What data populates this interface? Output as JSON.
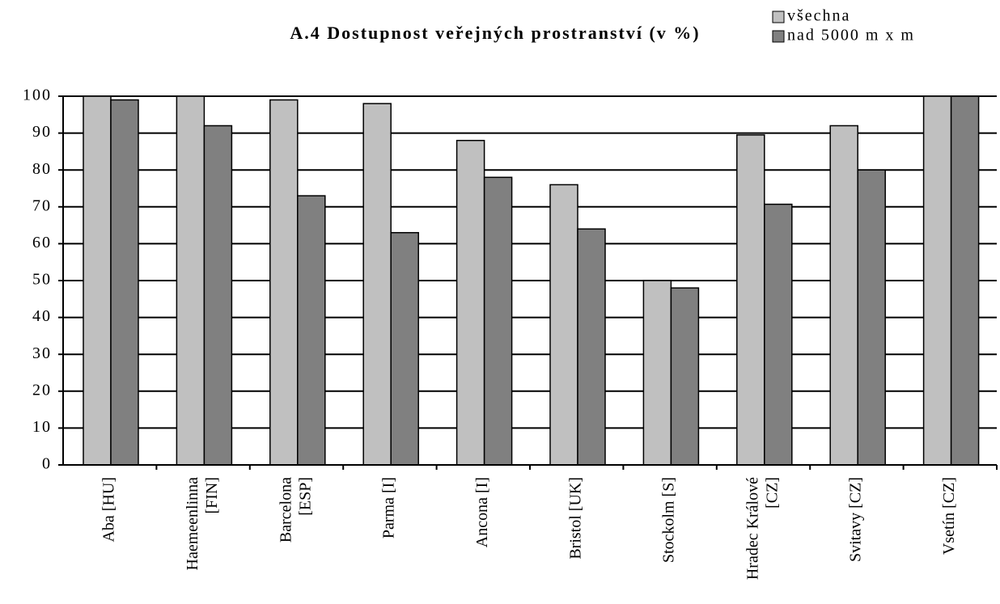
{
  "chart_data": {
    "type": "bar",
    "title": "A.4 Dostupnost veřejných prostranství (v %)",
    "categories": [
      "Aba [HU]",
      "Haemeenlinna [FIN]",
      "Barcelona [ESP]",
      "Parma [I]",
      "Ancona [I]",
      "Bristol [UK]",
      "Stockolm [S]",
      "Hradec Králové [CZ]",
      "Svitavy [CZ]",
      "Vsetín [CZ]"
    ],
    "series": [
      {
        "name": "všechna",
        "color": "#c0c0c0",
        "values": [
          100,
          100,
          99,
          98,
          88,
          76,
          50,
          89.5,
          92,
          100
        ]
      },
      {
        "name": "nad 5000 m x m",
        "color": "#808080",
        "values": [
          99,
          92,
          73,
          63,
          78,
          64,
          48,
          70.7,
          80,
          100
        ]
      }
    ],
    "ylim": [
      0,
      100
    ],
    "yticks": [
      0,
      10,
      20,
      30,
      40,
      50,
      60,
      70,
      80,
      90,
      100
    ],
    "grid": true,
    "legend": "top-right"
  }
}
